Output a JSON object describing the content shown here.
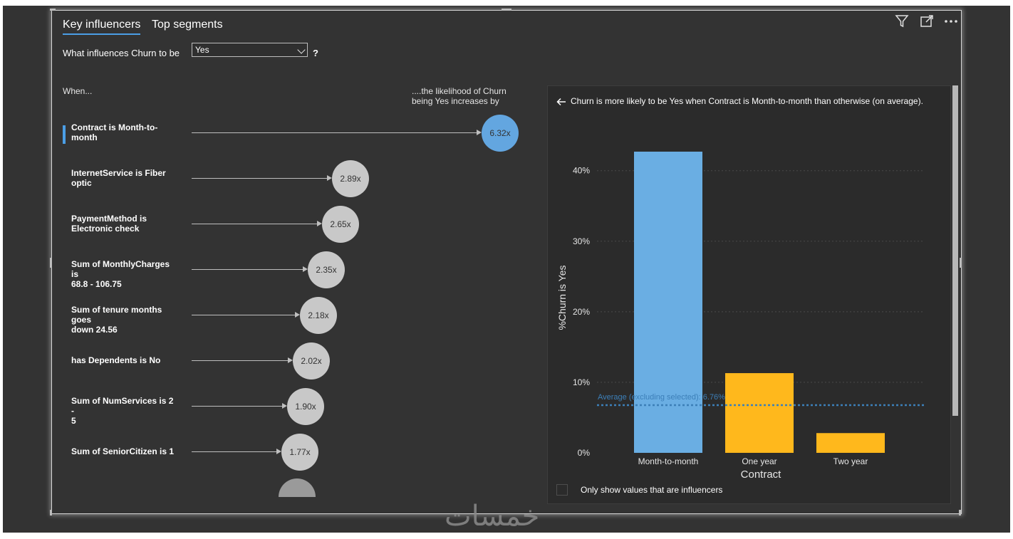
{
  "tabs": [
    {
      "label": "Key influencers",
      "active": true
    },
    {
      "label": "Top segments",
      "active": false
    }
  ],
  "question": {
    "prefix": "What influences Churn to be",
    "selected_value": "Yes",
    "suffix": "?"
  },
  "columns": {
    "when_label": "When...",
    "likelihood_line1": "....the likelihood of Churn",
    "likelihood_line2": "being Yes increases by"
  },
  "influencers": [
    {
      "label_line1": "Contract is Month-to-",
      "label_line2": "month",
      "value": "6.32x",
      "selected": true
    },
    {
      "label_line1": "InternetService is Fiber",
      "label_line2": "optic",
      "value": "2.89x",
      "selected": false
    },
    {
      "label_line1": "PaymentMethod is",
      "label_line2": "Electronic check",
      "value": "2.65x",
      "selected": false
    },
    {
      "label_line1": "Sum of MonthlyCharges is",
      "label_line2": "68.8 - 106.75",
      "value": "2.35x",
      "selected": false
    },
    {
      "label_line1": "Sum of tenure months goes",
      "label_line2": "down 24.56",
      "value": "2.18x",
      "selected": false
    },
    {
      "label_line1": "has Dependents is No",
      "label_line2": "",
      "value": "2.02x",
      "selected": false
    },
    {
      "label_line1": "Sum of NumServices is 2 -",
      "label_line2": "5",
      "value": "1.90x",
      "selected": false
    },
    {
      "label_line1": "Sum of SeniorCitizen is 1",
      "label_line2": "",
      "value": "1.77x",
      "selected": false
    }
  ],
  "detail": {
    "title": "Churn is more likely to be Yes when Contract is Month-to-month than otherwise (on average).",
    "checkbox_label": "Only show values that are influencers"
  },
  "icons": [
    "back-arrow-icon",
    "filter-icon",
    "focus-mode-icon",
    "more-options-icon"
  ],
  "colors": {
    "selected": "#63a6e0",
    "other": "#ffb81c",
    "average_line": "#3c7fb8",
    "accent": "#4b9ee6"
  },
  "chart_data": {
    "type": "bar",
    "categories": [
      "Month-to-month",
      "One year",
      "Two year"
    ],
    "values": [
      42.7,
      11.3,
      2.8
    ],
    "bar_colors": [
      "#6aaee3",
      "#ffb81c",
      "#ffb81c"
    ],
    "ylabel": "%Churn is Yes",
    "xlabel": "Contract",
    "yticks": [
      "0%",
      "10%",
      "20%",
      "30%",
      "40%"
    ],
    "ytick_values": [
      0,
      10,
      20,
      30,
      40
    ],
    "ylim": [
      0,
      43
    ],
    "grid": true,
    "average_value": 6.76,
    "average_label": "Average (excluding selected): 6.76%"
  },
  "watermark": "خمسات"
}
